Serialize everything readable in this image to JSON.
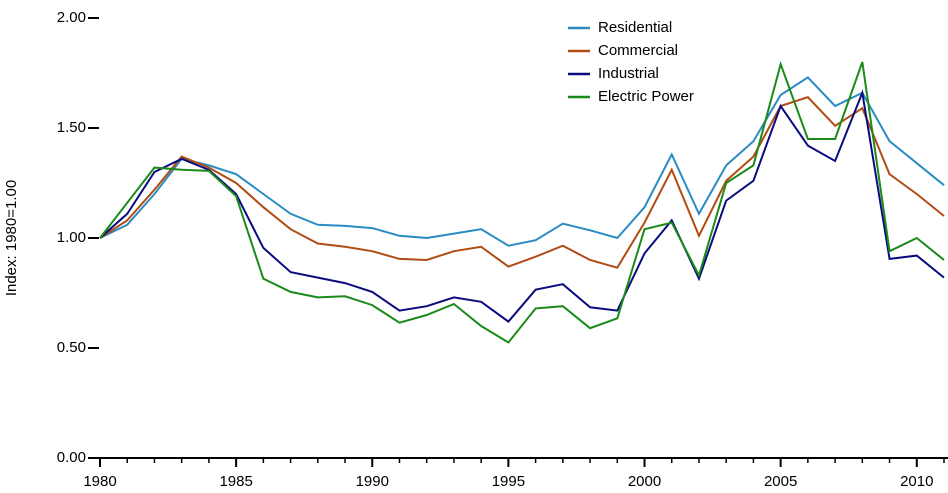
{
  "chart_data": {
    "type": "line",
    "y_label": "Index:  1980=1.00",
    "x": [
      1980,
      1981,
      1982,
      1983,
      1984,
      1985,
      1986,
      1987,
      1988,
      1989,
      1990,
      1991,
      1992,
      1993,
      1994,
      1995,
      1996,
      1997,
      1998,
      1999,
      2000,
      2001,
      2002,
      2003,
      2004,
      2005,
      2006,
      2007,
      2008,
      2009,
      2010,
      2011
    ],
    "series": [
      {
        "name": "Residential",
        "color": "#2a8cc2",
        "values": [
          1.0,
          1.06,
          1.2,
          1.36,
          1.33,
          1.29,
          1.2,
          1.11,
          1.06,
          1.055,
          1.045,
          1.01,
          1.0,
          1.02,
          1.04,
          0.965,
          0.99,
          1.065,
          1.035,
          1.0,
          1.14,
          1.38,
          1.11,
          1.33,
          1.44,
          1.65,
          1.73,
          1.6,
          1.66,
          1.44,
          1.34,
          1.24
        ]
      },
      {
        "name": "Commercial",
        "color": "#b14c15",
        "values": [
          1.0,
          1.08,
          1.22,
          1.37,
          1.32,
          1.25,
          1.14,
          1.04,
          0.975,
          0.96,
          0.94,
          0.905,
          0.9,
          0.94,
          0.96,
          0.87,
          0.915,
          0.965,
          0.9,
          0.865,
          1.07,
          1.31,
          1.01,
          1.26,
          1.37,
          1.6,
          1.64,
          1.51,
          1.59,
          1.29,
          1.2,
          1.1
        ]
      },
      {
        "name": "Industrial",
        "color": "#0b0b80",
        "values": [
          1.0,
          1.11,
          1.3,
          1.36,
          1.31,
          1.2,
          0.955,
          0.845,
          0.82,
          0.795,
          0.755,
          0.67,
          0.69,
          0.73,
          0.71,
          0.62,
          0.765,
          0.79,
          0.685,
          0.67,
          0.93,
          1.08,
          0.815,
          1.17,
          1.26,
          1.6,
          1.42,
          1.35,
          1.66,
          0.905,
          0.92,
          0.82
        ]
      },
      {
        "name": "Electric Power",
        "color": "#1a8a1a",
        "values": [
          1.0,
          1.16,
          1.32,
          1.31,
          1.305,
          1.19,
          0.815,
          0.755,
          0.73,
          0.735,
          0.695,
          0.615,
          0.65,
          0.7,
          0.6,
          0.525,
          0.68,
          0.69,
          0.59,
          0.635,
          1.04,
          1.07,
          0.83,
          1.25,
          1.33,
          1.79,
          1.45,
          1.45,
          1.8,
          0.94,
          1.0,
          0.9
        ]
      }
    ],
    "xlim": [
      1980,
      2011
    ],
    "xticks": [
      1980,
      1985,
      1990,
      1995,
      2000,
      2005,
      2010
    ],
    "ylim": [
      0,
      2
    ],
    "yticks": [
      {
        "value": 0,
        "label": "0.00"
      },
      {
        "value": 0.5,
        "label": "0.50"
      },
      {
        "value": 1,
        "label": "1.00"
      },
      {
        "value": 1.5,
        "label": "1.50"
      },
      {
        "value": 2,
        "label": "2.00"
      }
    ],
    "legend": "upper right"
  }
}
